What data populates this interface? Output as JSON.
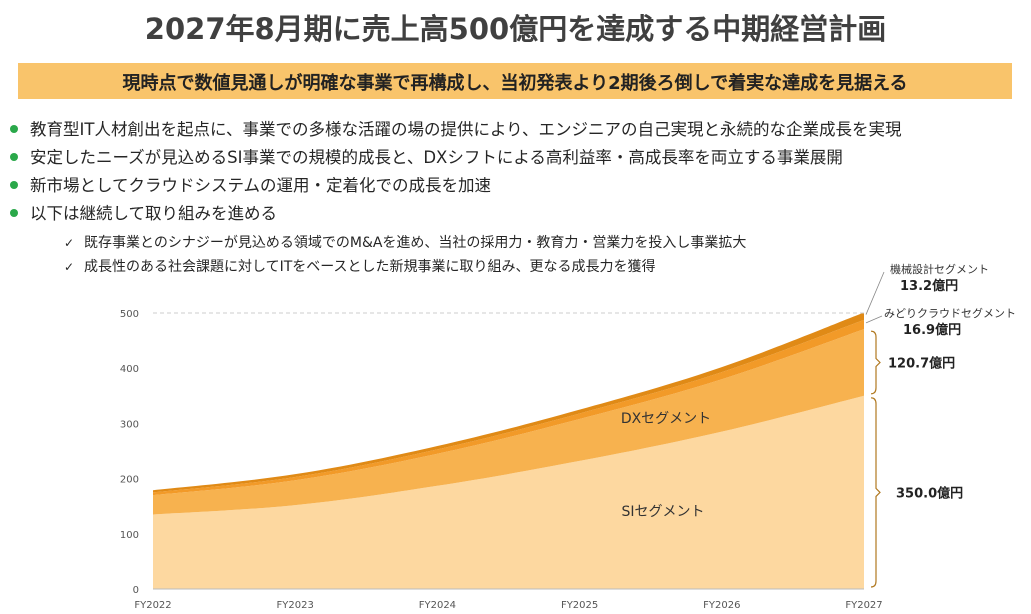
{
  "title": "2027年8月期に売上高500億円を達成する中期経営計画",
  "subtitle": "現時点で数値見通しが明確な事業で再構成し、当初発表より2期後ろ倒しで着実な達成を見据える",
  "bullets": [
    "教育型IT人材創出を起点に、事業での多様な活躍の場の提供により、エンジニアの自己実現と永続的な企業成長を実現",
    "安定したニーズが見込めるSI事業での規模的成長と、DXシフトによる高利益率・高成長率を両立する事業展開",
    "新市場としてクラウドシステムの運用・定着化での成長を加速",
    "以下は継続して取り組みを進める"
  ],
  "sub_bullets": [
    "既存事業とのシナジーが見込める領域でのM&Aを進め、当社の採用力・教育力・営業力を投入し事業拡大",
    "成長性のある社会課題に対してITをベースとした新規事業に取り組み、更なる成長力を獲得"
  ],
  "colors": {
    "bullet_dot": "#2aa84a",
    "band": "#f9c46b",
    "si": "#fdd8a0",
    "dx": "#f7b24f",
    "midori": "#f29a28",
    "kikai": "#e08a16"
  },
  "chart_data": {
    "type": "area",
    "stacked": true,
    "x": [
      "FY2022",
      "FY2023",
      "FY2024",
      "FY2025",
      "FY2026",
      "FY2027"
    ],
    "ylim": [
      0,
      500
    ],
    "yticks": [
      0,
      100,
      200,
      300,
      400,
      500
    ],
    "reference_line": 500,
    "series": [
      {
        "name": "SIセグメント",
        "values": [
          135,
          152,
          187,
          232,
          285,
          350
        ],
        "color": "#fdd8a0"
      },
      {
        "name": "DXセグメント",
        "values": [
          35,
          45,
          58,
          76,
          95,
          120.7
        ],
        "color": "#f7b24f"
      },
      {
        "name": "みどりクラウドセグメント",
        "values": [
          5,
          6,
          8,
          10,
          13,
          16.9
        ],
        "color": "#f29a28"
      },
      {
        "name": "機械設計セグメント",
        "values": [
          4,
          5,
          6,
          7,
          9,
          13.2
        ],
        "color": "#e08a16"
      }
    ],
    "annotations": [
      {
        "label": "機械設計セグメント",
        "value_text": "13.2億円"
      },
      {
        "label": "みどりクラウドセグメント",
        "value_text": "16.9億円"
      },
      {
        "label": "",
        "value_text": "120.7億円"
      },
      {
        "label": "",
        "value_text": "350.0億円"
      }
    ],
    "inline_labels": [
      "DXセグメント",
      "SIセグメント"
    ]
  }
}
